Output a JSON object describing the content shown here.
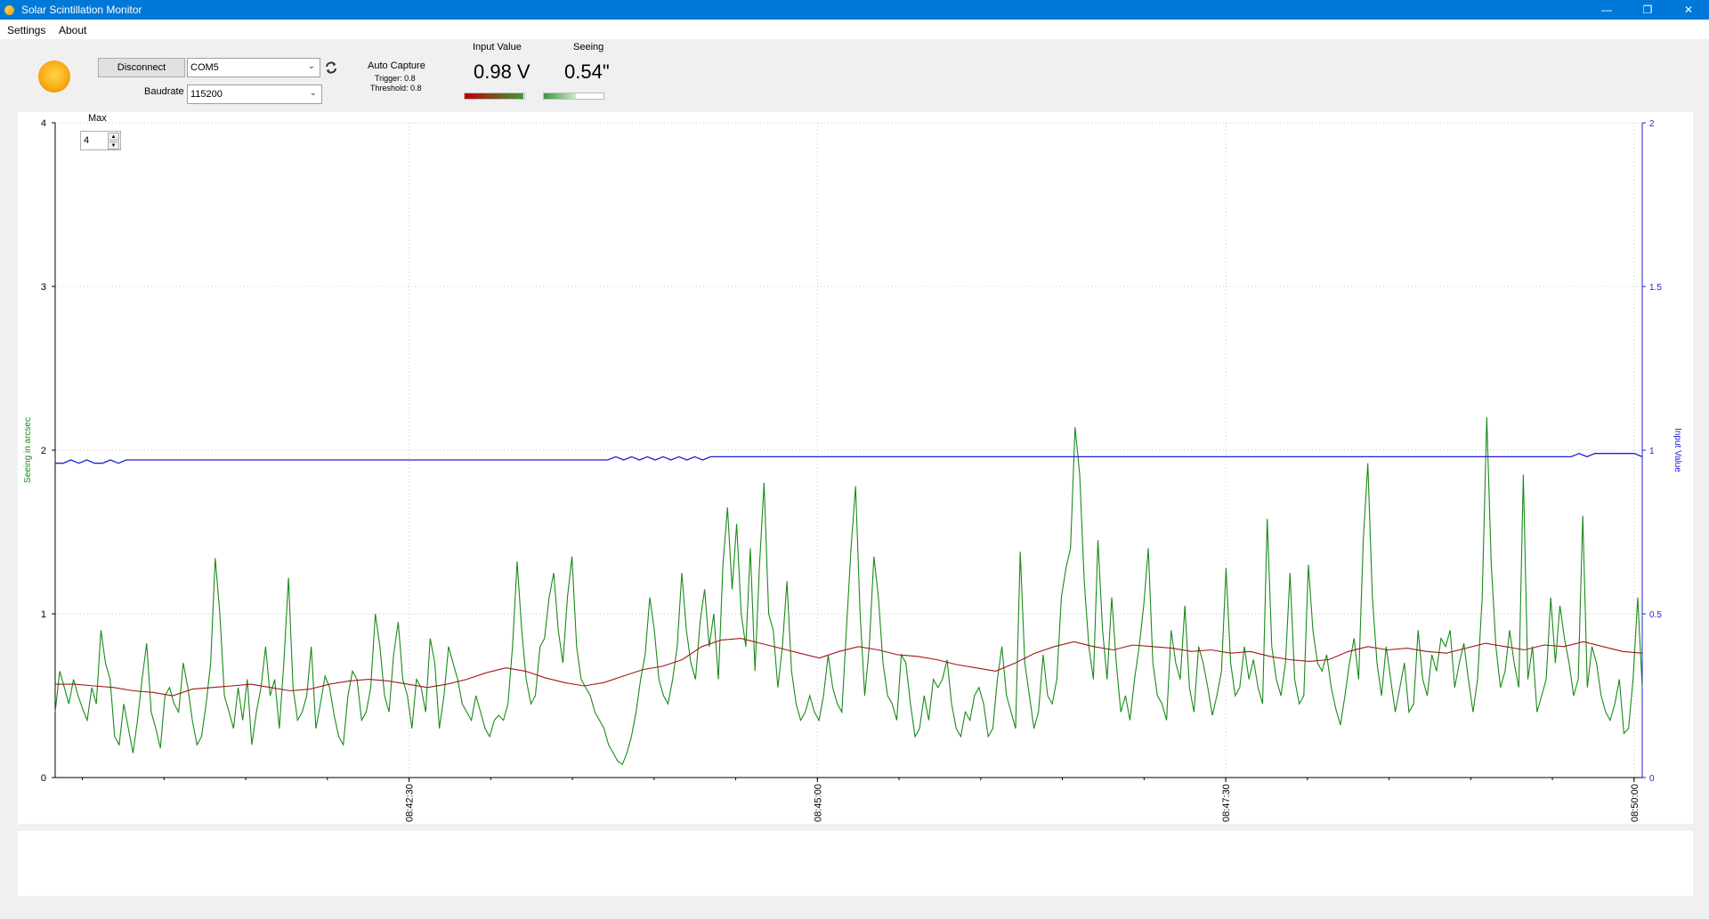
{
  "window": {
    "title": "Solar Scintillation Monitor"
  },
  "menu": {
    "settings": "Settings",
    "about": "About"
  },
  "connection": {
    "connect_button": "Disconnect",
    "port_value": "COM5",
    "baudrate_label": "Baudrate",
    "baudrate_value": "115200"
  },
  "auto_capture": {
    "title": "Auto Capture",
    "trigger": "Trigger: 0.8",
    "threshold": "Threshold: 0.8"
  },
  "readouts": {
    "input_label": "Input Value",
    "input_value": "0.98 V",
    "input_meter_level": 0.98,
    "seeing_label": "Seeing",
    "seeing_value": "0.54\"",
    "seeing_meter_level": 0.54
  },
  "max_spin": {
    "label": "Max",
    "value": "4"
  },
  "colors": {
    "seeing": "#1a8a1a",
    "average": "#a01818",
    "input": "#1f1fd6"
  },
  "chart_data": {
    "type": "line",
    "xlabel": "",
    "ylabel": "Seeing in arcsec",
    "y2label": "Input Value",
    "ylim": [
      0,
      4
    ],
    "y2lim": [
      0,
      2
    ],
    "y_ticks": [
      "0",
      "1",
      "2",
      "3",
      "4"
    ],
    "y2_ticks": [
      "0",
      "0.5",
      "1",
      "1.5",
      "2"
    ],
    "x_tick_labels": [
      "08:42:30",
      "08:45:00",
      "08:47:30",
      "08:50:00"
    ],
    "x_range": [
      "08:40:20",
      "08:50:03"
    ],
    "grid": true,
    "series": [
      {
        "key": "seeing",
        "axis": "y",
        "x_start": "08:40:20",
        "x_end": "08:50:03",
        "values": [
          0.4,
          0.65,
          0.55,
          0.45,
          0.6,
          0.5,
          0.42,
          0.35,
          0.55,
          0.45,
          0.9,
          0.7,
          0.6,
          0.25,
          0.2,
          0.45,
          0.3,
          0.15,
          0.35,
          0.6,
          0.82,
          0.4,
          0.3,
          0.18,
          0.5,
          0.55,
          0.45,
          0.4,
          0.7,
          0.55,
          0.35,
          0.2,
          0.25,
          0.45,
          0.7,
          1.34,
          1.0,
          0.5,
          0.4,
          0.3,
          0.55,
          0.35,
          0.6,
          0.2,
          0.4,
          0.55,
          0.8,
          0.5,
          0.6,
          0.3,
          0.7,
          1.22,
          0.55,
          0.35,
          0.4,
          0.5,
          0.8,
          0.3,
          0.45,
          0.62,
          0.55,
          0.38,
          0.25,
          0.2,
          0.5,
          0.65,
          0.6,
          0.35,
          0.4,
          0.55,
          1.0,
          0.8,
          0.5,
          0.4,
          0.75,
          0.95,
          0.6,
          0.5,
          0.3,
          0.6,
          0.55,
          0.4,
          0.85,
          0.7,
          0.3,
          0.5,
          0.8,
          0.7,
          0.6,
          0.45,
          0.4,
          0.35,
          0.5,
          0.4,
          0.3,
          0.25,
          0.35,
          0.38,
          0.35,
          0.45,
          0.8,
          1.32,
          0.9,
          0.6,
          0.45,
          0.5,
          0.8,
          0.85,
          1.1,
          1.25,
          0.9,
          0.7,
          1.1,
          1.35,
          0.8,
          0.6,
          0.55,
          0.5,
          0.4,
          0.35,
          0.3,
          0.2,
          0.15,
          0.1,
          0.08,
          0.15,
          0.25,
          0.4,
          0.6,
          0.75,
          1.1,
          0.9,
          0.6,
          0.5,
          0.45,
          0.6,
          0.8,
          1.25,
          0.9,
          0.7,
          0.6,
          0.95,
          1.15,
          0.8,
          1.0,
          0.6,
          1.3,
          1.65,
          1.15,
          1.55,
          1.0,
          0.8,
          1.4,
          0.65,
          1.3,
          1.8,
          1.0,
          0.9,
          0.55,
          0.8,
          1.2,
          0.65,
          0.45,
          0.35,
          0.4,
          0.5,
          0.4,
          0.35,
          0.5,
          0.75,
          0.55,
          0.45,
          0.4,
          0.9,
          1.4,
          1.78,
          1.0,
          0.5,
          0.8,
          1.35,
          1.1,
          0.7,
          0.5,
          0.45,
          0.35,
          0.75,
          0.7,
          0.45,
          0.25,
          0.3,
          0.5,
          0.35,
          0.6,
          0.55,
          0.6,
          0.72,
          0.45,
          0.3,
          0.25,
          0.4,
          0.35,
          0.5,
          0.55,
          0.45,
          0.25,
          0.3,
          0.6,
          0.8,
          0.5,
          0.4,
          0.3,
          1.38,
          0.7,
          0.5,
          0.3,
          0.4,
          0.75,
          0.5,
          0.45,
          0.6,
          1.1,
          1.28,
          1.4,
          2.14,
          1.85,
          1.2,
          0.8,
          0.6,
          1.45,
          0.9,
          0.6,
          1.1,
          0.7,
          0.4,
          0.5,
          0.35,
          0.6,
          0.8,
          1.05,
          1.4,
          0.7,
          0.5,
          0.45,
          0.35,
          0.9,
          0.7,
          0.6,
          1.05,
          0.55,
          0.4,
          0.8,
          0.7,
          0.55,
          0.38,
          0.5,
          0.65,
          1.28,
          0.7,
          0.5,
          0.55,
          0.8,
          0.6,
          0.72,
          0.55,
          0.45,
          1.58,
          0.8,
          0.6,
          0.5,
          0.7,
          1.25,
          0.6,
          0.45,
          0.5,
          1.3,
          0.9,
          0.7,
          0.65,
          0.75,
          0.55,
          0.42,
          0.32,
          0.5,
          0.7,
          0.85,
          0.6,
          1.45,
          1.92,
          1.1,
          0.7,
          0.5,
          0.8,
          0.6,
          0.4,
          0.55,
          0.7,
          0.4,
          0.45,
          0.9,
          0.6,
          0.5,
          0.75,
          0.65,
          0.85,
          0.8,
          0.9,
          0.55,
          0.7,
          0.82,
          0.6,
          0.4,
          0.6,
          1.1,
          2.2,
          1.3,
          0.8,
          0.55,
          0.65,
          0.9,
          0.7,
          0.55,
          1.85,
          0.6,
          0.8,
          0.4,
          0.5,
          0.6,
          1.1,
          0.7,
          1.05,
          0.85,
          0.7,
          0.5,
          0.6,
          1.6,
          0.55,
          0.8,
          0.7,
          0.5,
          0.4,
          0.35,
          0.45,
          0.6,
          0.27,
          0.3,
          0.6,
          1.1,
          0.55
        ]
      },
      {
        "key": "average",
        "axis": "y",
        "x_start": "08:40:20",
        "x_end": "08:50:03",
        "values": [
          0.57,
          0.57,
          0.56,
          0.55,
          0.53,
          0.52,
          0.5,
          0.54,
          0.55,
          0.56,
          0.57,
          0.55,
          0.53,
          0.54,
          0.57,
          0.59,
          0.6,
          0.59,
          0.57,
          0.55,
          0.57,
          0.6,
          0.64,
          0.67,
          0.65,
          0.61,
          0.58,
          0.56,
          0.58,
          0.62,
          0.66,
          0.68,
          0.72,
          0.8,
          0.84,
          0.85,
          0.82,
          0.79,
          0.76,
          0.73,
          0.77,
          0.8,
          0.78,
          0.75,
          0.74,
          0.72,
          0.69,
          0.67,
          0.65,
          0.7,
          0.76,
          0.8,
          0.83,
          0.8,
          0.78,
          0.81,
          0.8,
          0.79,
          0.77,
          0.78,
          0.76,
          0.77,
          0.74,
          0.72,
          0.71,
          0.72,
          0.77,
          0.8,
          0.78,
          0.79,
          0.77,
          0.76,
          0.79,
          0.82,
          0.8,
          0.78,
          0.81,
          0.8,
          0.83,
          0.8,
          0.77,
          0.76
        ]
      },
      {
        "key": "input",
        "axis": "y2",
        "x_start": "08:40:20",
        "x_end": "08:50:03",
        "values": [
          0.96,
          0.96,
          0.97,
          0.96,
          0.97,
          0.96,
          0.96,
          0.97,
          0.96,
          0.97,
          0.97,
          0.97,
          0.97,
          0.97,
          0.97,
          0.97,
          0.97,
          0.97,
          0.97,
          0.97,
          0.97,
          0.97,
          0.97,
          0.97,
          0.97,
          0.97,
          0.97,
          0.97,
          0.97,
          0.97,
          0.97,
          0.97,
          0.97,
          0.97,
          0.97,
          0.97,
          0.97,
          0.97,
          0.97,
          0.97,
          0.97,
          0.97,
          0.97,
          0.97,
          0.97,
          0.97,
          0.97,
          0.97,
          0.97,
          0.97,
          0.97,
          0.97,
          0.97,
          0.97,
          0.97,
          0.97,
          0.97,
          0.97,
          0.97,
          0.97,
          0.97,
          0.97,
          0.97,
          0.97,
          0.97,
          0.97,
          0.97,
          0.97,
          0.97,
          0.97,
          0.97,
          0.98,
          0.97,
          0.98,
          0.97,
          0.98,
          0.97,
          0.98,
          0.97,
          0.98,
          0.97,
          0.98,
          0.97,
          0.98,
          0.98,
          0.98,
          0.98,
          0.98,
          0.98,
          0.98,
          0.98,
          0.98,
          0.98,
          0.98,
          0.98,
          0.98,
          0.98,
          0.98,
          0.98,
          0.98,
          0.98,
          0.98,
          0.98,
          0.98,
          0.98,
          0.98,
          0.98,
          0.98,
          0.98,
          0.98,
          0.98,
          0.98,
          0.98,
          0.98,
          0.98,
          0.98,
          0.98,
          0.98,
          0.98,
          0.98,
          0.98,
          0.98,
          0.98,
          0.98,
          0.98,
          0.98,
          0.98,
          0.98,
          0.98,
          0.98,
          0.98,
          0.98,
          0.98,
          0.98,
          0.98,
          0.98,
          0.98,
          0.98,
          0.98,
          0.98,
          0.98,
          0.98,
          0.98,
          0.98,
          0.98,
          0.98,
          0.98,
          0.98,
          0.98,
          0.98,
          0.98,
          0.98,
          0.98,
          0.98,
          0.98,
          0.98,
          0.98,
          0.98,
          0.98,
          0.98,
          0.98,
          0.98,
          0.98,
          0.98,
          0.98,
          0.98,
          0.98,
          0.98,
          0.98,
          0.98,
          0.98,
          0.98,
          0.98,
          0.98,
          0.98,
          0.98,
          0.98,
          0.98,
          0.98,
          0.98,
          0.98,
          0.98,
          0.98,
          0.98,
          0.98,
          0.98,
          0.98,
          0.98,
          0.98,
          0.98,
          0.98,
          0.98,
          0.98,
          0.99,
          0.98,
          0.99,
          0.99,
          0.99,
          0.99,
          0.99,
          0.99,
          0.98
        ]
      }
    ]
  }
}
